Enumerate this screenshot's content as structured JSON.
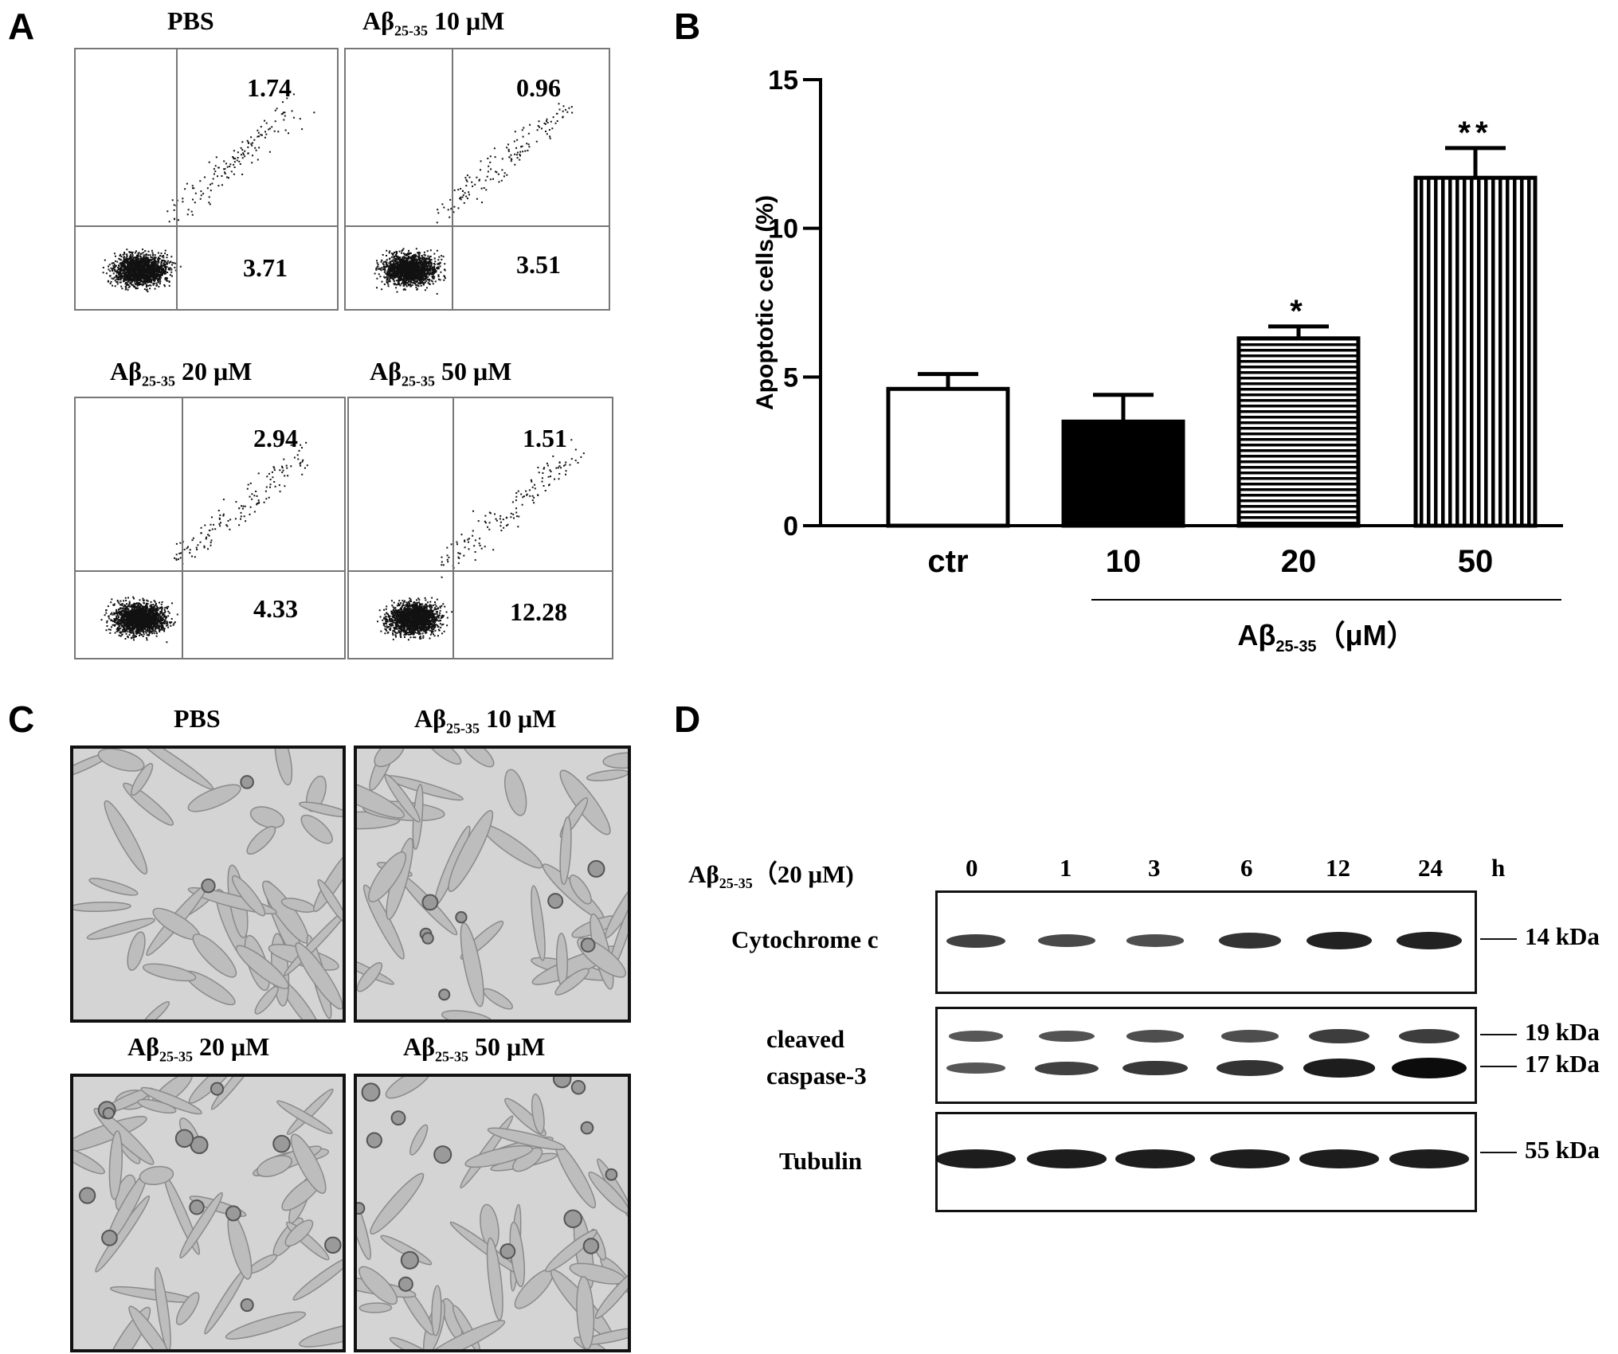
{
  "panels": {
    "a": "A",
    "b": "B",
    "c": "C",
    "d": "D"
  },
  "panel_a": {
    "plots": [
      {
        "title_pre": "PBS",
        "title_sub": "",
        "title_post": "",
        "upper_right": "1.74",
        "lower_right": "3.71"
      },
      {
        "title_pre": "Aβ",
        "title_sub": "25-35",
        "title_post": " 10 μM",
        "upper_right": "0.96",
        "lower_right": "3.51"
      },
      {
        "title_pre": "Aβ",
        "title_sub": "25-35",
        "title_post": " 20 μM",
        "upper_right": "2.94",
        "lower_right": "4.33"
      },
      {
        "title_pre": "Aβ",
        "title_sub": "25-35",
        "title_post": " 50 μM",
        "upper_right": "1.51",
        "lower_right": "12.28"
      }
    ]
  },
  "chart_data": {
    "type": "bar",
    "categories": [
      "ctr",
      "10",
      "20",
      "50"
    ],
    "values": [
      4.6,
      3.5,
      6.3,
      11.7
    ],
    "errors": [
      0.5,
      0.9,
      0.4,
      1.0
    ],
    "significance": [
      "",
      "",
      "*",
      "**"
    ],
    "fills": [
      "white",
      "black",
      "horizontal-stripes",
      "vertical-stripes"
    ],
    "ylabel": "Apoptotic cells (%)",
    "xlabel_pre": "Aβ",
    "xlabel_sub": "25-35",
    "xlabel_post": "（μM）",
    "ylim": [
      0,
      15
    ],
    "yticks": [
      "0",
      "5",
      "10",
      "15"
    ],
    "ytick_values": [
      0,
      5,
      10,
      15
    ]
  },
  "panel_c": {
    "images": [
      {
        "title_pre": "PBS",
        "title_sub": "",
        "title_post": ""
      },
      {
        "title_pre": "Aβ",
        "title_sub": "25-35",
        "title_post": " 10 μM"
      },
      {
        "title_pre": "Aβ",
        "title_sub": "25-35",
        "title_post": " 20 μM"
      },
      {
        "title_pre": "Aβ",
        "title_sub": "25-35",
        "title_post": " 50 μM"
      }
    ]
  },
  "panel_d": {
    "treatment_pre": "Aβ",
    "treatment_sub": "25-35",
    "treatment_post": "（20 μM)",
    "timepoints": [
      "0",
      "1",
      "3",
      "6",
      "12",
      "24"
    ],
    "time_unit": "h",
    "blots": [
      {
        "label": "Cytochrome c",
        "markers": [
          "14 kDa"
        ],
        "intensities": [
          0.5,
          0.45,
          0.4,
          0.65,
          0.8,
          0.8
        ]
      },
      {
        "label": "cleaved\ncaspase-3",
        "markers": [
          "19 kDa",
          "17 kDa"
        ],
        "upper_intensities": [
          0.3,
          0.35,
          0.4,
          0.4,
          0.55,
          0.55
        ],
        "lower_intensities": [
          0.3,
          0.5,
          0.6,
          0.65,
          0.85,
          1.0
        ]
      },
      {
        "label": "Tubulin",
        "markers": [
          "55 kDa"
        ],
        "intensities": [
          0.85,
          0.85,
          0.85,
          0.85,
          0.85,
          0.85
        ]
      }
    ]
  }
}
